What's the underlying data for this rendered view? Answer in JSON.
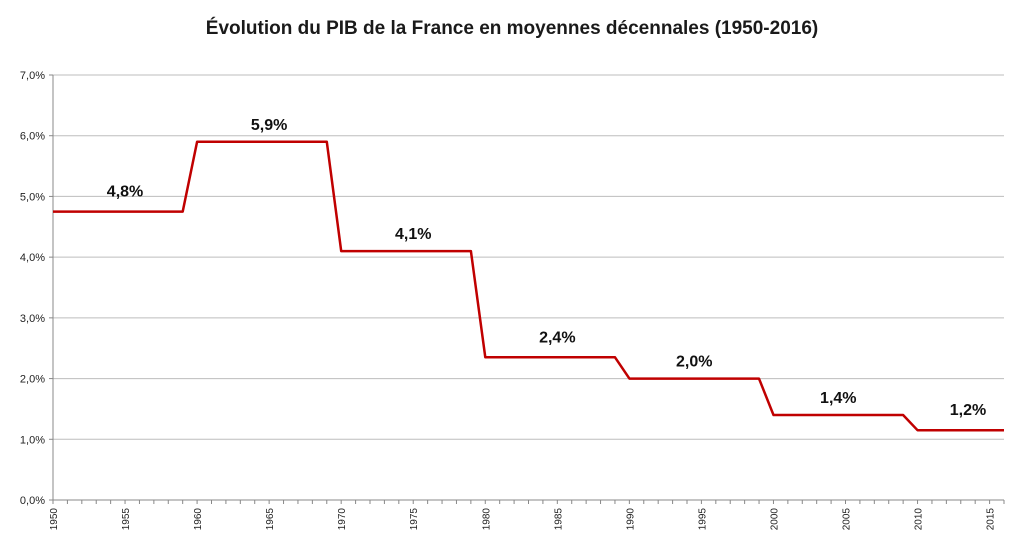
{
  "chart_data": {
    "type": "line",
    "title": "Évolution du PIB de la France en moyennes décennales (1950-2016)",
    "xlabel": "",
    "ylabel": "",
    "xlim": [
      1950,
      2016
    ],
    "ylim": [
      0,
      7
    ],
    "grid": true,
    "line_color": "#C00000",
    "y_ticks": [
      "0,0%",
      "1,0%",
      "2,0%",
      "3,0%",
      "4,0%",
      "5,0%",
      "6,0%",
      "7,0%"
    ],
    "x_ticks": [
      "1950",
      "1955",
      "1960",
      "1965",
      "1970",
      "1975",
      "1980",
      "1985",
      "1990",
      "1995",
      "2000",
      "2005",
      "2010",
      "2015"
    ],
    "series": [
      {
        "values": [
          {
            "x": 1950,
            "y": 4.75
          },
          {
            "x": 1959,
            "y": 4.75
          },
          {
            "x": 1960,
            "y": 5.9
          },
          {
            "x": 1969,
            "y": 5.9
          },
          {
            "x": 1970,
            "y": 4.1
          },
          {
            "x": 1979,
            "y": 4.1
          },
          {
            "x": 1980,
            "y": 2.35
          },
          {
            "x": 1989,
            "y": 2.35
          },
          {
            "x": 1990,
            "y": 2.0
          },
          {
            "x": 1999,
            "y": 2.0
          },
          {
            "x": 2000,
            "y": 1.4
          },
          {
            "x": 2009,
            "y": 1.4
          },
          {
            "x": 2010,
            "y": 1.15
          },
          {
            "x": 2016,
            "y": 1.15
          }
        ]
      }
    ],
    "data_labels": [
      {
        "text": "4,8%",
        "x": 1955,
        "y": 4.8
      },
      {
        "text": "5,9%",
        "x": 1965,
        "y": 5.9
      },
      {
        "text": "4,1%",
        "x": 1975,
        "y": 4.1
      },
      {
        "text": "2,4%",
        "x": 1985,
        "y": 2.4
      },
      {
        "text": "2,0%",
        "x": 1994.5,
        "y": 2.0
      },
      {
        "text": "1,4%",
        "x": 2004.5,
        "y": 1.4
      },
      {
        "text": "1,2%",
        "x": 2013.5,
        "y": 1.2
      }
    ]
  }
}
